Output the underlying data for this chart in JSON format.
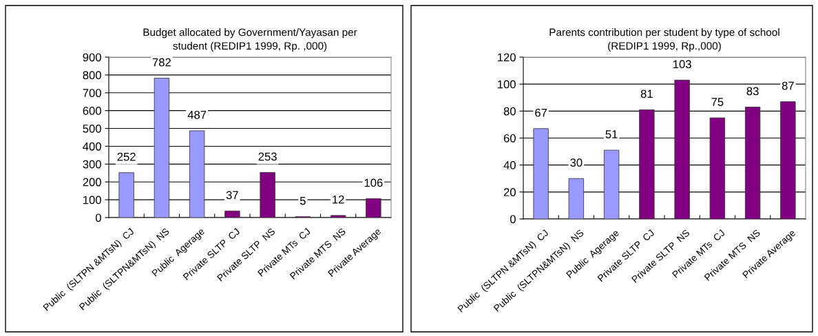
{
  "chart_data": [
    {
      "type": "bar",
      "title": "Budget allocated by Government/Yayasan per\nstudent (REDIP1 1999, Rp. ,000)",
      "categories": [
        "Public  (SLTPN &MTsN)  CJ",
        "Public  (SLTPN&MTsN)  NS",
        "Public  Agerage",
        "Private SLTP  CJ",
        "Private SLTP  NS",
        "Private MTs  CJ",
        "Private MTS  NS",
        "Private Average"
      ],
      "values": [
        252,
        782,
        487,
        37,
        253,
        5,
        12,
        106
      ],
      "colors": [
        "#9999ff",
        "#9999ff",
        "#9999ff",
        "#800080",
        "#800080",
        "#800080",
        "#800080",
        "#800080"
      ],
      "ylim": [
        0,
        900
      ],
      "yticks": [
        0,
        100,
        200,
        300,
        400,
        500,
        600,
        700,
        800,
        900
      ],
      "grid": "y",
      "data_labels": true
    },
    {
      "type": "bar",
      "title": "Parents contribution per student by type of school\n(REDIP1 1999, Rp.,000)",
      "categories": [
        "Public  (SLTPN &MTsN)  CJ",
        "Public  (SLTPN&MTsN)  NS",
        "Public  Agerage",
        "Private SLTP  CJ",
        "Private SLTP  NS",
        "Private MTs  CJ",
        "Private MTS  NS",
        "Private Average"
      ],
      "values": [
        67,
        30,
        51,
        81,
        103,
        75,
        83,
        87
      ],
      "colors": [
        "#9999ff",
        "#9999ff",
        "#9999ff",
        "#800080",
        "#800080",
        "#800080",
        "#800080",
        "#800080"
      ],
      "ylim": [
        0,
        120
      ],
      "yticks": [
        0,
        20,
        40,
        60,
        80,
        100,
        120
      ],
      "grid": "y",
      "data_labels": true
    }
  ]
}
